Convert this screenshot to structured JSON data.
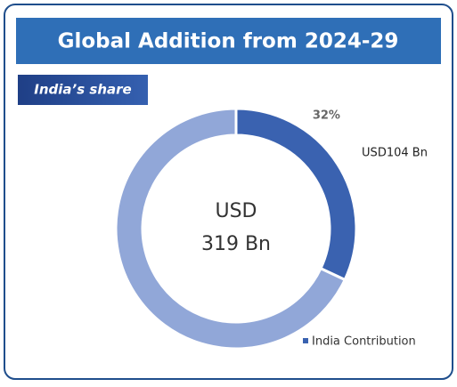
{
  "chart_data": {
    "type": "pie",
    "title": "Global Addition from 2024-29",
    "subtitle": "India’s share",
    "center_text": [
      "USD",
      "319 Bn"
    ],
    "annotation": "USD104 Bn",
    "categories": [
      "India Contribution",
      null
    ],
    "values": [
      32,
      68
    ],
    "value_labels": [
      "32%",
      null
    ],
    "colors": [
      "#3a62b0",
      "#91a7d8"
    ],
    "legend": true
  }
}
